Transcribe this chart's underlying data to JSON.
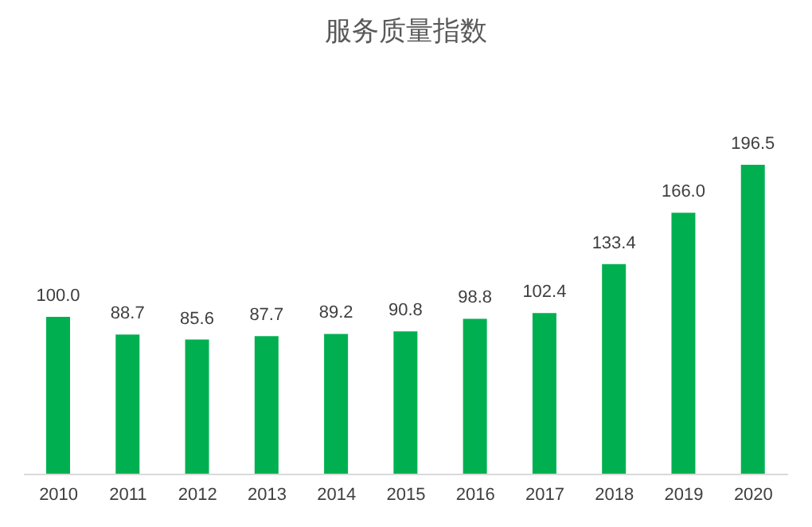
{
  "chart_data": {
    "type": "bar",
    "title": "服务质量指数",
    "categories": [
      "2010",
      "2011",
      "2012",
      "2013",
      "2014",
      "2015",
      "2016",
      "2017",
      "2018",
      "2019",
      "2020"
    ],
    "values": [
      100.0,
      88.7,
      85.6,
      87.7,
      89.2,
      90.8,
      98.8,
      102.4,
      133.4,
      166.0,
      196.5
    ],
    "value_labels": [
      "100.0",
      "88.7",
      "85.6",
      "87.7",
      "89.2",
      "90.8",
      "98.8",
      "102.4",
      "133.4",
      "166.0",
      "196.5"
    ],
    "color": "#00b050"
  }
}
